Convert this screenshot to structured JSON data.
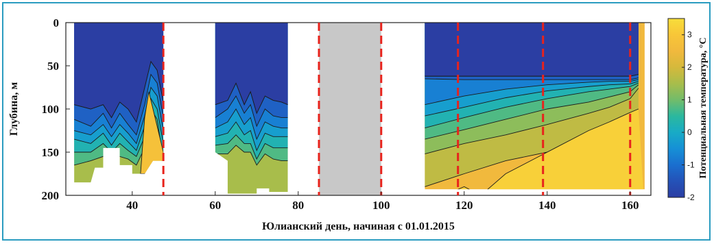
{
  "chart_data": {
    "type": "heatmap",
    "xlabel": "Юлианский день, начиная с 01.01.2015",
    "ylabel": "Глубина, м",
    "colorbar_label": "Потенциальная температура, °С",
    "xlim": [
      24,
      165
    ],
    "ylim": [
      0,
      200
    ],
    "y_inverted": true,
    "x_ticks": [
      40,
      60,
      80,
      100,
      120,
      140,
      160
    ],
    "y_ticks": [
      0,
      50,
      100,
      150,
      200
    ],
    "colorbar_range": [
      -2,
      3.5
    ],
    "colorbar_ticks": [
      -2,
      -1,
      0,
      1,
      2,
      3
    ],
    "colors": {
      "cold": "#2b3ea3",
      "mid": "#1fb5b0",
      "warm": "#f7c531",
      "no_data_gap": "#c8c8c8",
      "boundary_line": "#e8231c"
    },
    "red_dashed_lines_x": [
      47.5,
      85,
      100,
      118.5,
      139,
      160
    ],
    "gray_gap_x": [
      85,
      100
    ],
    "segments": [
      {
        "x_range": [
          26,
          47.5
        ],
        "max_depth_by_x": [
          [
            26,
            185
          ],
          [
            30,
            185
          ],
          [
            31,
            168
          ],
          [
            33,
            168
          ],
          [
            33,
            145
          ],
          [
            37,
            145
          ],
          [
            37,
            165
          ],
          [
            40,
            165
          ],
          [
            40,
            175
          ],
          [
            43,
            175
          ],
          [
            45,
            160
          ],
          [
            47.5,
            160
          ]
        ],
        "isotherm_depths_by_x": {
          "x": [
            26,
            30,
            33,
            35,
            37,
            39,
            41,
            43,
            44.5,
            46,
            47.5
          ],
          "-1.5": [
            95,
            100,
            95,
            110,
            92,
            100,
            115,
            75,
            45,
            55,
            92
          ],
          "-1": [
            112,
            120,
            105,
            122,
            105,
            118,
            130,
            95,
            60,
            70,
            110
          ],
          "-0.5": [
            125,
            130,
            118,
            132,
            118,
            128,
            140,
            108,
            75,
            85,
            125
          ],
          "0": [
            135,
            140,
            128,
            142,
            128,
            138,
            148,
            120,
            88,
            100,
            140
          ],
          "0.5": [
            150,
            150,
            140,
            150,
            140,
            148,
            155,
            132,
            100,
            112,
            160
          ],
          "1": [
            165,
            160,
            155,
            160,
            155,
            158,
            165,
            145,
            112,
            125,
            175
          ]
        },
        "warm_core": {
          "x_range": [
            43,
            47.5
          ],
          "temperature": 2.8
        }
      },
      {
        "x_range": [
          60,
          77.5
        ],
        "max_depth_by_x": [
          [
            60,
            150
          ],
          [
            63,
            160
          ],
          [
            63,
            198
          ],
          [
            70,
            198
          ],
          [
            70,
            192
          ],
          [
            73,
            192
          ],
          [
            73,
            196
          ],
          [
            77.5,
            196
          ]
        ],
        "isotherm_depths_by_x": {
          "x": [
            60,
            63,
            65,
            67,
            68.5,
            70,
            72,
            74,
            76,
            77.5
          ],
          "-1.5": [
            95,
            90,
            70,
            95,
            80,
            105,
            85,
            90,
            92,
            95
          ],
          "-1": [
            110,
            100,
            85,
            105,
            95,
            120,
            100,
            108,
            110,
            110
          ],
          "-0.5": [
            122,
            115,
            100,
            118,
            110,
            135,
            115,
            120,
            122,
            122
          ],
          "0": [
            132,
            128,
            115,
            130,
            125,
            148,
            128,
            132,
            132,
            132
          ],
          "0.5": [
            142,
            140,
            130,
            140,
            140,
            158,
            140,
            145,
            145,
            145
          ],
          "1": [
            152,
            152,
            142,
            150,
            150,
            165,
            152,
            158,
            160,
            160
          ]
        }
      },
      {
        "x_range": [
          110.5,
          163.5
        ],
        "max_depth": 193,
        "isotherm_depths_by_x": {
          "x": [
            110.5,
            120,
            130,
            140,
            150,
            155,
            160,
            162
          ],
          "-1.5": [
            62,
            62,
            62,
            62,
            62,
            62,
            62,
            60
          ],
          "-1": [
            65,
            66,
            66,
            66,
            66,
            66,
            66,
            64
          ],
          "-0.5": [
            95,
            85,
            77,
            72,
            69,
            68,
            68,
            66
          ],
          "0": [
            108,
            98,
            87,
            79,
            74,
            72,
            71,
            68
          ],
          "0.5": [
            122,
            110,
            98,
            88,
            80,
            77,
            74,
            70
          ],
          "1": [
            135,
            124,
            112,
            100,
            92,
            86,
            80,
            72
          ],
          "1.5": [
            152,
            140,
            130,
            118,
            105,
            98,
            88,
            76
          ],
          "2": [
            190,
            175,
            160,
            150,
            140,
            120,
            110,
            100
          ]
        },
        "warm_core_boundary_by_x": [
          [
            110.5,
            210
          ],
          [
            120,
            190
          ],
          [
            124,
            200
          ],
          [
            130,
            175
          ],
          [
            136,
            160
          ],
          [
            142,
            145
          ],
          [
            150,
            125
          ],
          [
            155,
            115
          ],
          [
            160,
            104
          ],
          [
            162,
            100
          ]
        ]
      }
    ]
  }
}
